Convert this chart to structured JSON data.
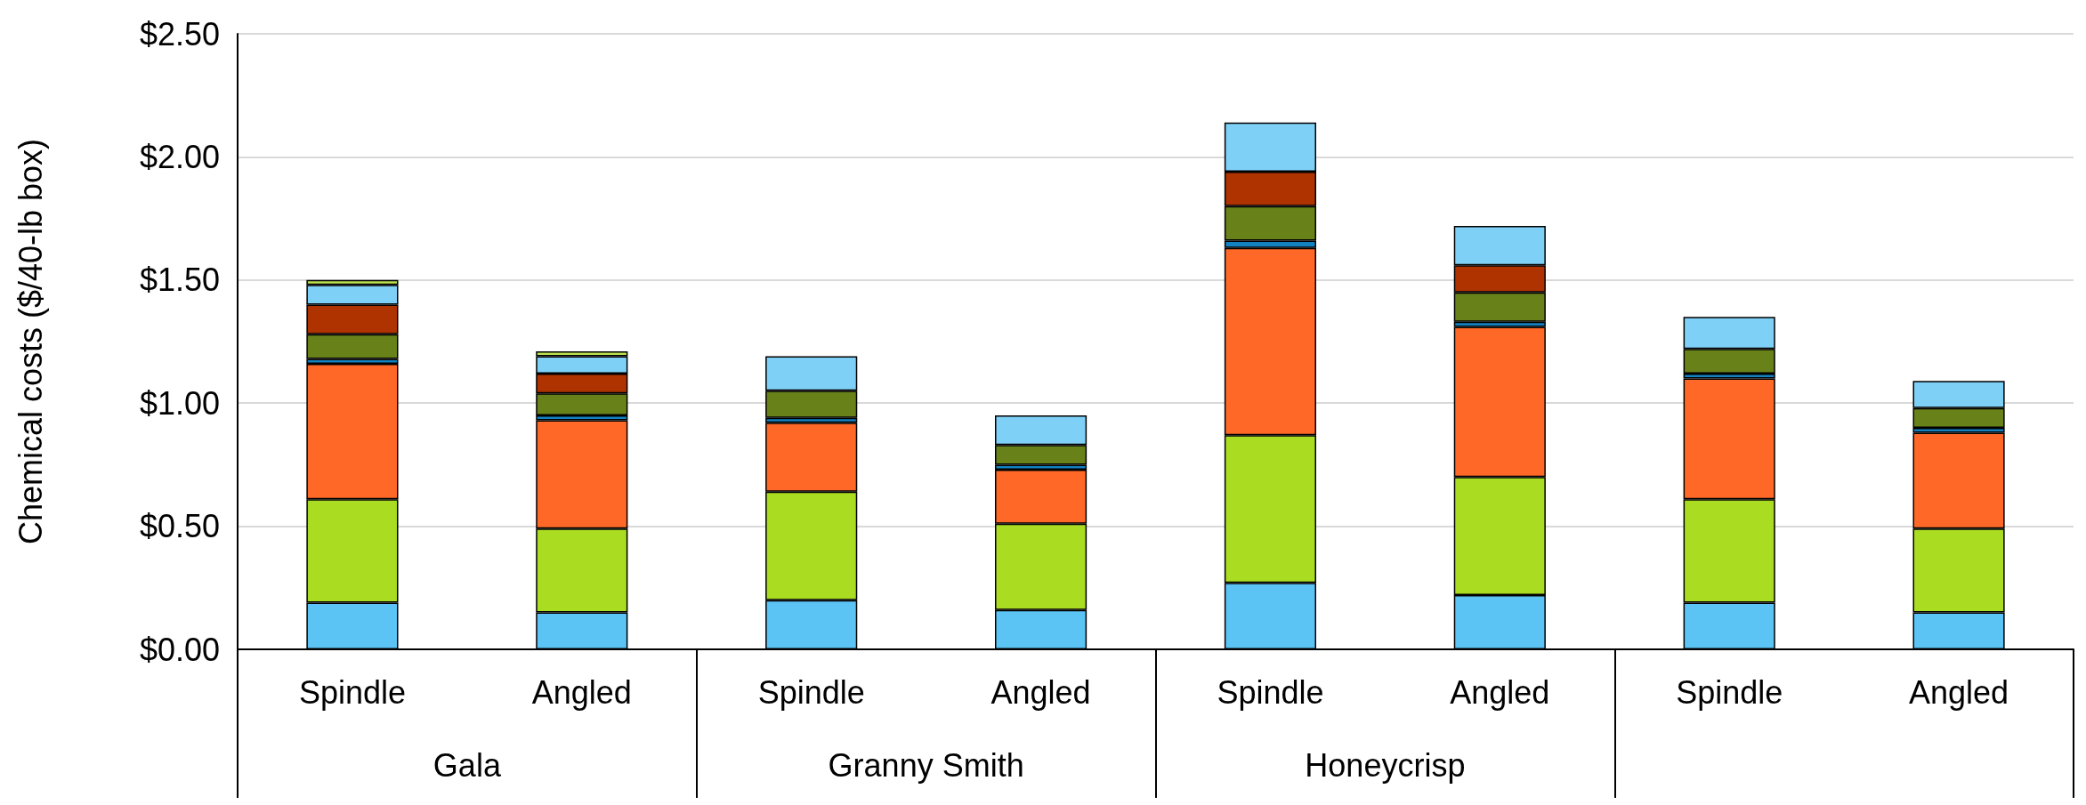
{
  "chart_data": {
    "type": "bar",
    "stacked": true,
    "ylabel": "Chemical costs ($/40-lb box)",
    "categories": [
      "Spindle",
      "Angled",
      "Spindle",
      "Angled",
      "Spindle",
      "Angled",
      "Spindle",
      "Angled"
    ],
    "annotations": [
      "Gala",
      "Granny Smith",
      "Honeycrisp"
    ],
    "series": [
      {
        "color": "#5bc4f5",
        "values": [
          0.19,
          0.15,
          0.2,
          0.16,
          0.27,
          0.22,
          0.19,
          0.15
        ]
      },
      {
        "color": "#aadc22",
        "values": [
          0.42,
          0.34,
          0.44,
          0.35,
          0.6,
          0.48,
          0.42,
          0.34
        ]
      },
      {
        "color": "#ff6826",
        "values": [
          0.55,
          0.44,
          0.28,
          0.22,
          0.76,
          0.61,
          0.49,
          0.39
        ]
      },
      {
        "color": "#1282c0",
        "values": [
          0.02,
          0.02,
          0.02,
          0.02,
          0.03,
          0.02,
          0.02,
          0.02
        ]
      },
      {
        "color": "#688219",
        "values": [
          0.1,
          0.09,
          0.11,
          0.08,
          0.14,
          0.12,
          0.1,
          0.08
        ]
      },
      {
        "color": "#ae3300",
        "values": [
          0.12,
          0.08,
          null,
          null,
          0.14,
          0.11,
          null,
          null
        ]
      },
      {
        "color": "#7fd0f7",
        "values": [
          0.08,
          0.07,
          0.14,
          0.12,
          0.2,
          0.16,
          0.13,
          0.11
        ]
      },
      {
        "color": "#bde34f",
        "values": [
          0.02,
          0.02,
          null,
          null,
          null,
          null,
          null,
          null
        ]
      }
    ],
    "ylim": [
      0,
      2.5
    ],
    "yticks": [
      {
        "value": 0,
        "label": "$0.00"
      },
      {
        "value": 0.5,
        "label": "$0.50"
      },
      {
        "value": 1,
        "label": "$1.00"
      },
      {
        "value": 1.5,
        "label": "$1.50"
      },
      {
        "value": 2,
        "label": "$2.00"
      },
      {
        "value": 2.5,
        "label": "$2.50"
      }
    ],
    "grid": "y"
  }
}
